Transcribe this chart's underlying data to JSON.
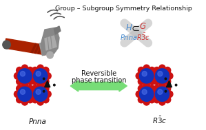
{
  "title": "Group – Subgroup Symmetry Relationship",
  "title_fontsize": 6.8,
  "bg_color": "#ffffff",
  "arrow_color": "#77dd77",
  "arrow_text1": "Reversible",
  "arrow_text2": "phase transition",
  "arrow_fontsize": 7.0,
  "label_left": "Pnna",
  "label_right": "R$\\bar{3}$c",
  "label_fontsize": 7.5,
  "math_fontsize": 8.5,
  "cross_color": "#bbbbbb",
  "H_color": "#4488cc",
  "G_color": "#cc3333",
  "Pnna_color": "#4488cc",
  "R3c_color": "#cc3333",
  "sphere_blue": "#1133bb",
  "sphere_red": "#cc1111",
  "sphere_dark": "#111111"
}
